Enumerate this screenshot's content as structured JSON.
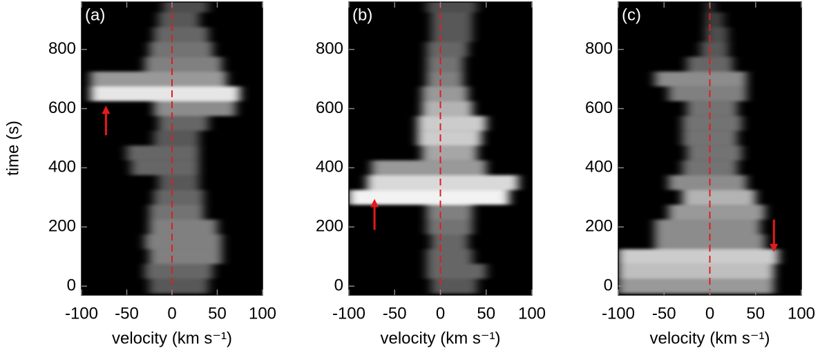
{
  "chart_data": [
    {
      "type": "heatmap",
      "title": "(a)",
      "x_label": "velocity (km s⁻¹)",
      "y_label": "time (s)",
      "xlim": [
        -100,
        100
      ],
      "xticks": [
        -100,
        -50,
        0,
        50,
        100
      ],
      "ylim": [
        -30,
        960
      ],
      "yticks": [
        0,
        200,
        400,
        600,
        800
      ],
      "vline": 0,
      "vline_color": "#e41a1c",
      "times": [
        0,
        50,
        100,
        150,
        200,
        250,
        300,
        350,
        400,
        450,
        500,
        550,
        600,
        650,
        700,
        750,
        800,
        850,
        900,
        950
      ],
      "low": [
        -25,
        -30,
        -25,
        -30,
        -25,
        -25,
        -20,
        -15,
        -45,
        -50,
        -20,
        -15,
        -20,
        -90,
        -90,
        -30,
        -25,
        -20,
        -15,
        -10
      ],
      "high": [
        40,
        45,
        55,
        55,
        50,
        35,
        35,
        30,
        30,
        30,
        30,
        40,
        70,
        75,
        60,
        55,
        45,
        40,
        30,
        40
      ],
      "brightness": [
        0.35,
        0.4,
        0.5,
        0.5,
        0.5,
        0.45,
        0.4,
        0.35,
        0.4,
        0.4,
        0.35,
        0.4,
        0.55,
        0.9,
        0.6,
        0.5,
        0.45,
        0.4,
        0.35,
        0.3
      ],
      "arrow": {
        "x": -73,
        "y": [
          510,
          610
        ],
        "color": "#e41a1c"
      }
    },
    {
      "type": "heatmap",
      "title": "(b)",
      "x_label": "velocity (km s⁻¹)",
      "xlim": [
        -100,
        100
      ],
      "xticks": [
        -100,
        -50,
        0,
        50,
        100
      ],
      "ylim": [
        -30,
        960
      ],
      "yticks": [
        0,
        200,
        400,
        600,
        800
      ],
      "vline": 0,
      "vline_color": "#e41a1c",
      "times": [
        0,
        50,
        100,
        150,
        200,
        250,
        300,
        350,
        400,
        450,
        500,
        550,
        600,
        650,
        700,
        750,
        800,
        850,
        900,
        950
      ],
      "low": [
        -10,
        -15,
        -15,
        -10,
        -15,
        -15,
        -100,
        -80,
        -75,
        -20,
        -25,
        -25,
        -20,
        -20,
        -15,
        -15,
        -15,
        -10,
        -10,
        -15
      ],
      "high": [
        40,
        50,
        35,
        30,
        35,
        35,
        75,
        85,
        50,
        40,
        45,
        50,
        35,
        30,
        25,
        25,
        30,
        35,
        35,
        40
      ],
      "brightness": [
        0.35,
        0.4,
        0.4,
        0.4,
        0.45,
        0.5,
        0.95,
        0.85,
        0.6,
        0.65,
        0.8,
        0.8,
        0.7,
        0.6,
        0.5,
        0.45,
        0.4,
        0.35,
        0.35,
        0.3
      ],
      "arrow": {
        "x": -72,
        "y": [
          190,
          295
        ],
        "color": "#e41a1c"
      }
    },
    {
      "type": "heatmap",
      "title": "(c)",
      "x_label": "velocity (km s⁻¹)",
      "xlim": [
        -100,
        100
      ],
      "xticks": [
        -100,
        -50,
        0,
        50,
        100
      ],
      "ylim": [
        -30,
        960
      ],
      "yticks": [
        0,
        200,
        400,
        600,
        800
      ],
      "vline": 0,
      "vline_color": "#e41a1c",
      "times": [
        0,
        50,
        100,
        150,
        200,
        250,
        300,
        350,
        400,
        450,
        500,
        550,
        600,
        650,
        700,
        750,
        800,
        850,
        900,
        950
      ],
      "low": [
        -100,
        -100,
        -100,
        -60,
        -60,
        -45,
        -30,
        -45,
        -30,
        -25,
        -30,
        -30,
        -25,
        -45,
        -60,
        -25,
        -10,
        -5,
        -5,
        -5
      ],
      "high": [
        70,
        70,
        75,
        60,
        55,
        60,
        50,
        40,
        30,
        35,
        30,
        35,
        30,
        40,
        40,
        25,
        20,
        20,
        15,
        5
      ],
      "brightness": [
        0.6,
        0.75,
        0.8,
        0.55,
        0.55,
        0.6,
        0.7,
        0.55,
        0.45,
        0.45,
        0.45,
        0.45,
        0.45,
        0.5,
        0.55,
        0.4,
        0.35,
        0.3,
        0.25,
        0.2
      ],
      "arrow": {
        "x": 70,
        "y": [
          225,
          115
        ],
        "color": "#e41a1c"
      }
    }
  ]
}
